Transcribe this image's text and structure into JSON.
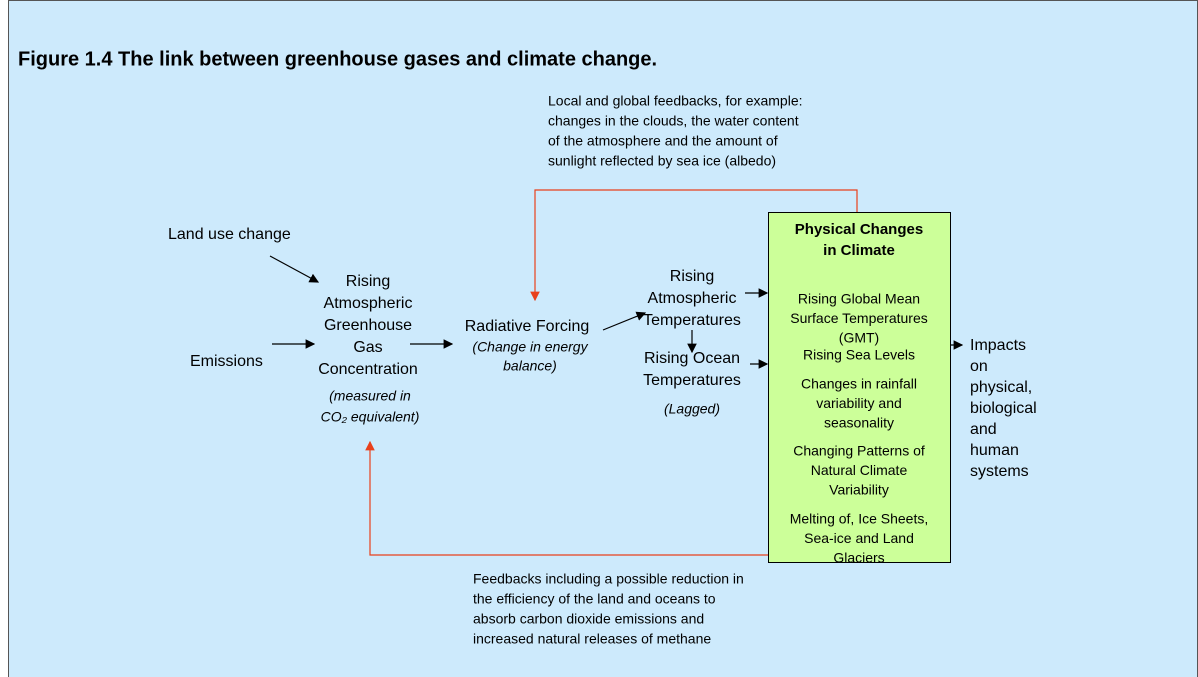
{
  "title": "Figure 1.4  The link between greenhouse gases and climate change.",
  "feedback_top": {
    "lines": [
      "Local and global feedbacks, for example:",
      "changes in the clouds, the water content",
      "of the atmosphere and the amount of",
      "sunlight reflected by sea ice (albedo)"
    ]
  },
  "feedback_bottom": {
    "lines": [
      "Feedbacks including a possible reduction in",
      "the efficiency of the land and oceans to",
      "absorb carbon dioxide emissions and",
      "increased natural releases of methane"
    ]
  },
  "nodes": {
    "land_use": {
      "lines": [
        "Land use change"
      ]
    },
    "emissions": {
      "lines": [
        "Emissions"
      ]
    },
    "ghg": {
      "lines": [
        "Rising",
        "Atmospheric",
        "Greenhouse",
        "Gas",
        "Concentration"
      ],
      "note": [
        "(measured in",
        "CO₂ equivalent)"
      ]
    },
    "forcing": {
      "lines": [
        "Radiative Forcing"
      ],
      "note": [
        "(Change in energy",
        "balance)"
      ]
    },
    "atm_temp": {
      "lines": [
        "Rising",
        "Atmospheric",
        "Temperatures"
      ]
    },
    "ocean_temp": {
      "lines": [
        "Rising Ocean",
        "Temperatures"
      ],
      "note": [
        "(Lagged)"
      ]
    },
    "physical": {
      "heading": [
        "Physical Changes",
        "in Climate"
      ],
      "items": [
        [
          "Rising Global Mean",
          "Surface Temperatures",
          "(GMT)"
        ],
        [
          "Rising Sea Levels"
        ],
        [
          "Changes in rainfall",
          "variability and",
          "seasonality"
        ],
        [
          "Changing Patterns of",
          "Natural Climate",
          "Variability"
        ],
        [
          "Melting of, Ice Sheets,",
          "Sea-ice and Land",
          "Glaciers"
        ]
      ]
    },
    "impacts": {
      "lines": [
        "Impacts",
        "on",
        "physical,",
        "biological",
        "and",
        "human",
        "systems"
      ]
    }
  }
}
